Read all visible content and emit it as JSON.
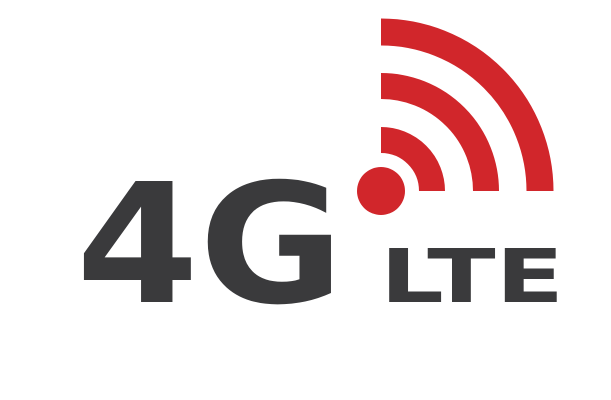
{
  "logo": {
    "generation": "4G",
    "technology": "LTE",
    "colors": {
      "text": "#3a3a3c",
      "signal": "#d1262b",
      "background": "#ffffff"
    },
    "icon": "wireless-signal-icon"
  }
}
